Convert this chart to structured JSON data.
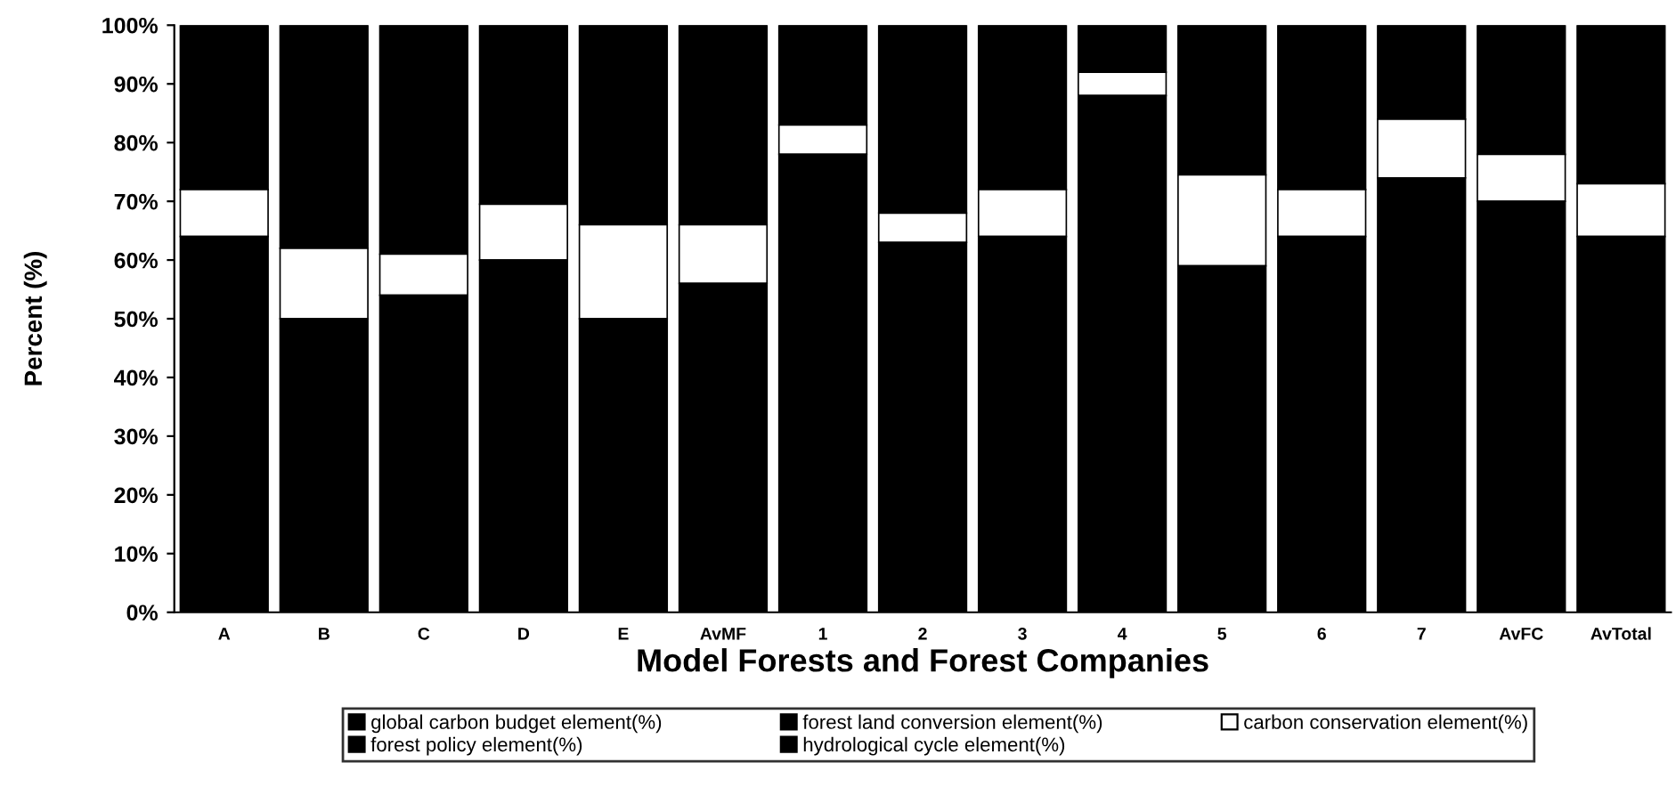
{
  "chart_data": {
    "type": "bar",
    "stacked": true,
    "xlabel": "Model Forests and Forest Companies",
    "ylabel": "Percent (%)",
    "categories": [
      "A",
      "B",
      "C",
      "D",
      "E",
      "AvMF",
      "1",
      "2",
      "3",
      "4",
      "5",
      "6",
      "7",
      "AvFC",
      "AvTotal"
    ],
    "series": [
      {
        "name": "global carbon budget element(%)",
        "color": "#000000",
        "values": [
          64,
          50,
          54,
          60,
          50,
          56,
          78,
          63,
          64,
          88,
          59,
          64,
          74,
          70,
          64
        ]
      },
      {
        "name": "forest land conversion element(%)",
        "color": "#000000",
        "values": [
          null,
          null,
          null,
          null,
          null,
          null,
          null,
          null,
          null,
          null,
          null,
          null,
          null,
          null,
          null
        ]
      },
      {
        "name": "carbon conservation element(%)",
        "color": "#ffffff",
        "values": [
          8,
          12,
          7,
          9.5,
          16,
          10,
          5,
          5,
          8,
          4,
          15.5,
          8,
          10,
          8,
          9
        ]
      },
      {
        "name": "forest policy element(%)",
        "color": "#000000",
        "values": [
          28,
          38,
          39,
          30.5,
          34,
          34,
          17,
          32,
          28,
          8,
          25.5,
          28,
          16,
          22,
          27
        ]
      },
      {
        "name": "hydrological cycle element(%)",
        "color": "#000000",
        "values": [
          null,
          null,
          null,
          null,
          null,
          null,
          null,
          null,
          null,
          null,
          null,
          null,
          null,
          null,
          null
        ]
      }
    ],
    "ylim": [
      0,
      100
    ],
    "yticks": [
      {
        "value": 0,
        "label": "0%"
      },
      {
        "value": 10,
        "label": "10%"
      },
      {
        "value": 20,
        "label": "20%"
      },
      {
        "value": 30,
        "label": "30%"
      },
      {
        "value": 40,
        "label": "40%"
      },
      {
        "value": 50,
        "label": "50%"
      },
      {
        "value": 60,
        "label": "60%"
      },
      {
        "value": 70,
        "label": "70%"
      },
      {
        "value": 80,
        "label": "80%"
      },
      {
        "value": 90,
        "label": "90%"
      },
      {
        "value": 100,
        "label": "100%"
      }
    ],
    "grid": false,
    "legend": "bottom"
  }
}
